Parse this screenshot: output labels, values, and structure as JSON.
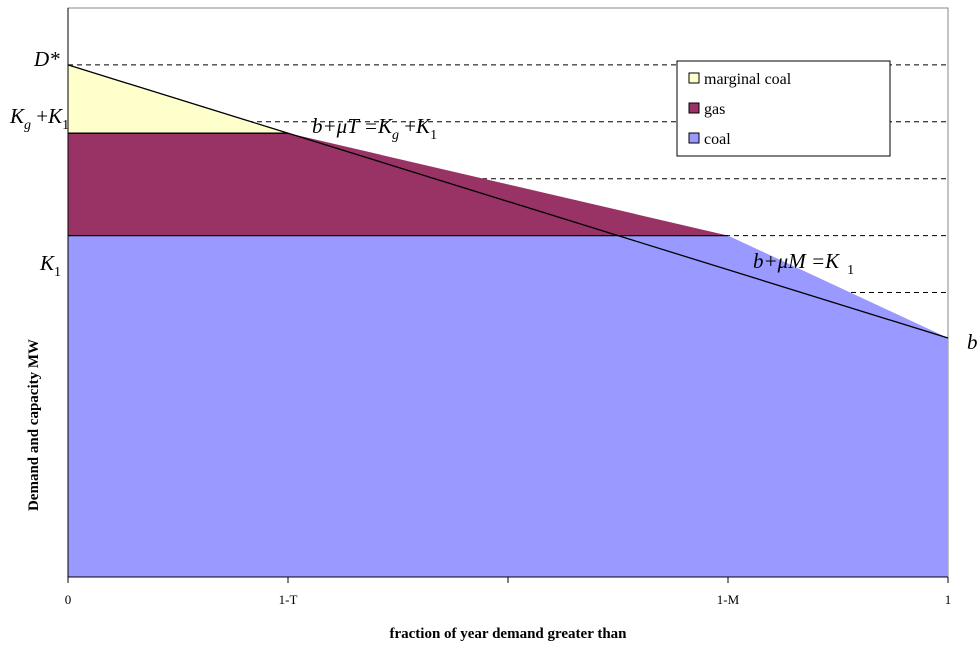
{
  "chart_data": {
    "type": "area",
    "xlabel": "fraction of year demand greater than",
    "ylabel": "Demand and capacity MW",
    "x_ticks": [
      {
        "x": 0,
        "label": "0"
      },
      {
        "x": 0.25,
        "label": "1-T"
      },
      {
        "x": 0.5,
        "label": ""
      },
      {
        "x": 0.75,
        "label": "1-M"
      },
      {
        "x": 1,
        "label": "1"
      }
    ],
    "xlim": [
      0,
      1
    ],
    "ylim": [
      0,
      1
    ],
    "gridlines_y": [
      0.2,
      0.4,
      0.5,
      0.6,
      0.7,
      0.8,
      0.9
    ],
    "demand_curve": {
      "x": [
        0,
        1
      ],
      "y": [
        0.9,
        0.42
      ]
    },
    "levels": {
      "K1": 0.6,
      "Kg_plus_K1": 0.78
    },
    "series": [
      {
        "name": "marginal coal",
        "color": "#FFFFCC",
        "x": [
          0,
          0.25
        ],
        "upper": [
          0.9,
          0.78
        ],
        "lower": [
          0.78,
          0.78
        ]
      },
      {
        "name": "gas",
        "color": "#993366",
        "x": [
          0,
          0.25,
          0.75
        ],
        "upper": [
          0.78,
          0.78,
          0.6
        ],
        "lower": [
          0.6,
          0.6,
          0.6
        ]
      },
      {
        "name": "coal",
        "color": "#9999FF",
        "x": [
          0,
          0.75,
          1
        ],
        "upper": [
          0.6,
          0.6,
          0.42
        ],
        "lower": [
          0,
          0,
          0
        ]
      }
    ],
    "legend_position": "top-right",
    "annotations": {
      "d_star": "D*",
      "kg_k1": {
        "a": "K",
        "a_sub": "g",
        "plus": " +",
        "b": "K",
        "b_sub": "1"
      },
      "k1": {
        "a": "K",
        "a_sub": "1"
      },
      "eq_t": {
        "lhs": "b+μT =",
        "a": "K",
        "a_sub": "g",
        "plus": " +",
        "b": "K",
        "b_sub": "1"
      },
      "eq_m": {
        "lhs": "b+μM =",
        "a": "K",
        "a_sub": "1"
      },
      "b": "b"
    }
  }
}
